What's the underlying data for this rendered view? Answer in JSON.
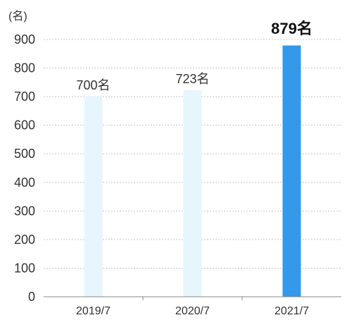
{
  "chart_data": {
    "type": "bar",
    "unit_label": "(名)",
    "categories": [
      "2019/7",
      "2020/7",
      "2021/7"
    ],
    "values": [
      700,
      723,
      879
    ],
    "data_labels": [
      "700名",
      "723名",
      "879名"
    ],
    "highlight_index": 2,
    "ylim": [
      0,
      900
    ],
    "yticks": [
      "0",
      "100",
      "200",
      "300",
      "400",
      "500",
      "600",
      "700",
      "800",
      "900"
    ],
    "grid": true,
    "colors": {
      "bar": "#e6f6fc",
      "highlight": "#3399e8",
      "grid": "#c8c8c8",
      "axis": "#888888"
    }
  }
}
